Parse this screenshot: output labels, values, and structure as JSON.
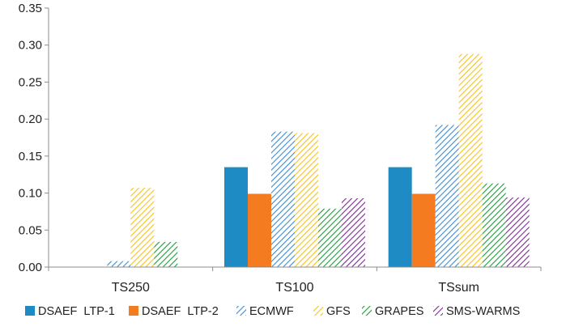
{
  "chart_data": {
    "type": "bar",
    "categories": [
      "TS250",
      "TS100",
      "TSsum"
    ],
    "ylim": [
      0,
      0.35
    ],
    "yticks": [
      "0.00",
      "0.05",
      "0.10",
      "0.15",
      "0.20",
      "0.25",
      "0.30",
      "0.35"
    ],
    "grid": false,
    "legend_position": "bottom",
    "series": [
      {
        "name": "DSAEF  LTP-1",
        "values": [
          0,
          0.135,
          0.135
        ],
        "color": "#1F8BC4",
        "fill": "solid"
      },
      {
        "name": "DSAEF  LTP-2",
        "values": [
          0,
          0.099,
          0.099
        ],
        "color": "#F47B20",
        "fill": "solid"
      },
      {
        "name": "ECMWF",
        "values": [
          0.008,
          0.183,
          0.192
        ],
        "color": "#3B8BD0",
        "fill": "hatch"
      },
      {
        "name": "GFS",
        "values": [
          0.107,
          0.181,
          0.288
        ],
        "color": "#F6C21C",
        "fill": "hatch"
      },
      {
        "name": "GRAPES",
        "values": [
          0.034,
          0.079,
          0.113
        ],
        "color": "#1E9A3C",
        "fill": "hatch"
      },
      {
        "name": "SMS-WARMS",
        "values": [
          0,
          0.093,
          0.094
        ],
        "color": "#7A2A92",
        "fill": "hatch"
      }
    ]
  }
}
